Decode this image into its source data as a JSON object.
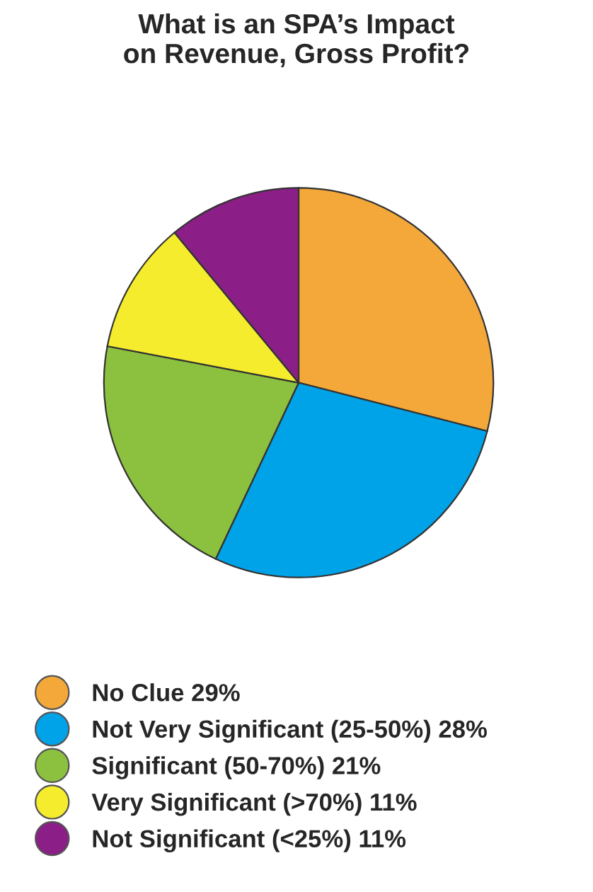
{
  "chart_data": {
    "type": "pie",
    "title": "What is an SPA’s Impact\non Revenue, Gross Profit?",
    "categories": [
      "No Clue",
      "Not Very Significant (25-50%)",
      "Significant (50-70%)",
      "Very Significant (>70%)",
      "Not Significant (<25%)"
    ],
    "values": [
      29,
      28,
      21,
      11,
      11
    ],
    "value_labels": [
      "29%",
      "28%",
      "21%",
      "11%",
      "11%"
    ],
    "colors": [
      "#f4a83a",
      "#00a3e8",
      "#8cc03f",
      "#f5ec2e",
      "#8b1f87"
    ],
    "legend": "bottom"
  }
}
